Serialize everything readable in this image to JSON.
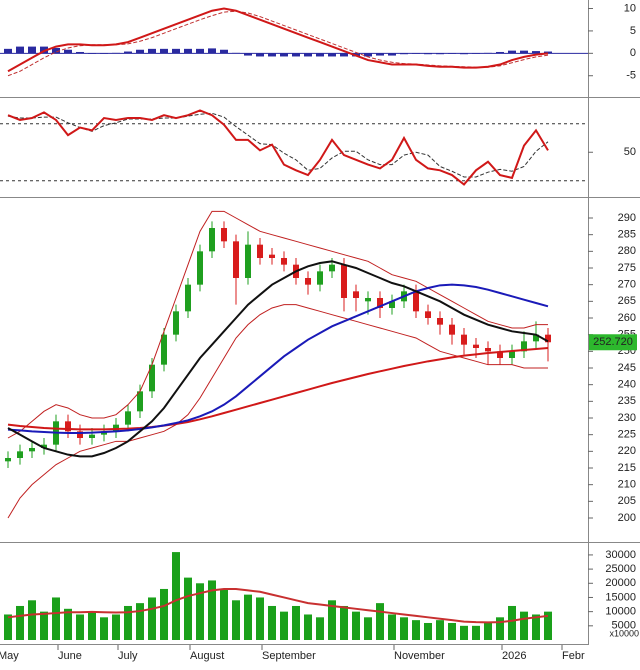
{
  "chart_data": [
    {
      "type": "line",
      "ylim": [
        -9.3,
        11.9
      ],
      "yticks": [
        10,
        5,
        0,
        -5
      ],
      "series": [
        {
          "style": "bars",
          "color": "#2a2aa0",
          "values": [
            1,
            1.5,
            1.5,
            1.5,
            1.2,
            0.8,
            0.3,
            -0.1,
            -0.1,
            0.1,
            0.4,
            0.8,
            1,
            1,
            1,
            1,
            1,
            1.1,
            0.8,
            0.1,
            -0.5,
            -0.7,
            -0.7,
            -0.7,
            -0.7,
            -0.7,
            -0.7,
            -0.7,
            -0.7,
            -0.7,
            -0.7,
            -0.5,
            -0.5,
            -0.2,
            -0.1,
            -0.2,
            -0.2,
            -0.1,
            -0.2,
            -0.1,
            0.1,
            0.3,
            0.6,
            0.6,
            0.5,
            0.4,
            null,
            null,
            null
          ]
        },
        {
          "style": "dashed",
          "color": "#c03030",
          "values": [
            -5,
            -4,
            -2.5,
            -1,
            0.3,
            1.2,
            1.7,
            1.9,
            1.9,
            1.9,
            2.1,
            2.7,
            3.5,
            4.5,
            5.5,
            6.5,
            7.5,
            8.4,
            9.2,
            9.4,
            9,
            8.2,
            7.2,
            6.2,
            5.2,
            4.2,
            3.2,
            2.2,
            1.2,
            0.2,
            -0.8,
            -1.5,
            -2,
            -2.3,
            -2.4,
            -2.6,
            -2.8,
            -2.9,
            -3,
            -3.1,
            -3.1,
            -2.8,
            -2.1,
            -1.4,
            -0.8,
            -0.4,
            null,
            null,
            null
          ]
        },
        {
          "style": "solid",
          "color": "#d01818",
          "values": [
            -4,
            -2.5,
            -1,
            0.5,
            1.5,
            2,
            2,
            1.8,
            1.8,
            2,
            2.5,
            3.5,
            4.5,
            5.5,
            6.5,
            7.5,
            8.5,
            9.5,
            10,
            9.5,
            8.5,
            7.5,
            6.5,
            5.5,
            4.5,
            3.5,
            2.5,
            1.5,
            0.5,
            -0.5,
            -1.5,
            -2,
            -2.5,
            -2.5,
            -2.5,
            -2.8,
            -3,
            -3,
            -3.2,
            -3.2,
            -3,
            -2.5,
            -1.5,
            -0.8,
            -0.3,
            0,
            null,
            null,
            null
          ]
        }
      ]
    },
    {
      "type": "line",
      "ylim": [
        5,
        105
      ],
      "yticks": [
        50
      ],
      "levels": [
        80,
        20
      ],
      "series": [
        {
          "style": "dashed",
          "color": "#333333",
          "values": [
            88,
            86,
            86,
            87,
            87,
            81,
            76,
            72,
            78,
            81,
            85,
            85,
            85,
            86,
            86,
            88,
            90,
            91,
            87,
            77,
            68,
            59,
            58,
            49,
            42,
            31,
            33,
            44,
            51,
            51,
            42,
            37,
            37,
            47,
            50,
            47,
            35,
            30,
            24,
            24,
            29,
            32,
            30,
            35,
            51,
            61,
            null,
            null,
            null
          ]
        },
        {
          "style": "solid",
          "color": "#d01818",
          "values": [
            89,
            84,
            86,
            92,
            84,
            68,
            76,
            73,
            86,
            84,
            86,
            86,
            84,
            89,
            86,
            89,
            94,
            89,
            79,
            63,
            63,
            52,
            58,
            37,
            31,
            26,
            42,
            63,
            47,
            42,
            37,
            33,
            42,
            65,
            42,
            33,
            31,
            26,
            16,
            31,
            40,
            26,
            23,
            57,
            73,
            52,
            null,
            null,
            null
          ]
        }
      ]
    },
    {
      "type": "candlestick",
      "ylim": [
        193.4,
        295.4
      ],
      "yticks": [
        200,
        205,
        210,
        215,
        220,
        225,
        230,
        235,
        240,
        245,
        250,
        255,
        260,
        265,
        270,
        275,
        280,
        285,
        290
      ],
      "up_color": "#1f9f1f",
      "down_color": "#d81c1c",
      "open": [
        217,
        218,
        220,
        221,
        222,
        229,
        226,
        224,
        225,
        226,
        228,
        232,
        238,
        246,
        255,
        262,
        270,
        280,
        287,
        283,
        272,
        282,
        279,
        278,
        276,
        272,
        270,
        274,
        276,
        268,
        265,
        266,
        263,
        265,
        268,
        262,
        260,
        258,
        255,
        252,
        251,
        250,
        248,
        250,
        253,
        255,
        null,
        null,
        null
      ],
      "high": [
        220,
        222,
        223,
        224,
        231,
        231,
        228,
        227,
        228,
        230,
        234,
        240,
        248,
        257,
        264,
        272,
        282,
        289,
        289,
        285,
        286,
        284,
        281,
        280,
        278,
        274,
        276,
        278,
        278,
        270,
        268,
        268,
        267,
        270,
        270,
        264,
        262,
        260,
        257,
        254,
        253,
        252,
        252,
        256,
        259,
        257,
        null,
        null,
        null
      ],
      "low": [
        215,
        216,
        218,
        219,
        220,
        224,
        222,
        222,
        223,
        224,
        226,
        230,
        236,
        244,
        253,
        260,
        268,
        278,
        281,
        264,
        270,
        276,
        276,
        274,
        270,
        267,
        268,
        272,
        262,
        262,
        261,
        260,
        261,
        263,
        260,
        258,
        255,
        252,
        249,
        248,
        246,
        246,
        246,
        248,
        251,
        247,
        null,
        null,
        null
      ],
      "close": [
        218,
        220,
        221,
        222,
        229,
        226,
        224,
        225,
        226,
        228,
        232,
        238,
        246,
        255,
        262,
        270,
        280,
        287,
        283,
        272,
        282,
        278,
        278,
        276,
        272,
        270,
        274,
        276,
        266,
        266,
        266,
        263,
        265,
        268,
        262,
        260,
        258,
        255,
        252,
        251,
        250,
        248,
        250,
        253,
        255,
        252.72,
        null,
        null,
        null
      ],
      "last_label": "252.720",
      "last_label_color": "#2db82d",
      "series": [
        {
          "style": "thin",
          "color": "#c02020",
          "values": [
            224,
            226,
            229,
            232,
            234,
            233,
            231,
            230,
            230,
            231,
            234,
            238,
            246,
            256,
            266,
            276,
            286,
            292,
            292,
            290,
            288,
            286,
            285,
            284,
            283,
            282,
            281,
            280,
            279,
            278,
            277,
            275,
            273,
            272,
            271,
            269,
            267,
            265,
            263,
            261,
            259,
            258,
            257,
            257,
            258,
            258,
            null,
            null,
            null
          ]
        },
        {
          "style": "thin",
          "color": "#c02020",
          "values": [
            200,
            206,
            210,
            213,
            216,
            218,
            220,
            221,
            222,
            223,
            223,
            224,
            225,
            226,
            228,
            231,
            236,
            242,
            248,
            254,
            258,
            261,
            263,
            264,
            264,
            263,
            262,
            261,
            260,
            259,
            258,
            257,
            256,
            255,
            254,
            252,
            250,
            249,
            248,
            247,
            246,
            246,
            246,
            245,
            245,
            245,
            null,
            null,
            null
          ]
        },
        {
          "style": "solid",
          "color": "#d01818",
          "values": [
            228,
            227.6,
            227.3,
            227,
            226.8,
            226.7,
            226.6,
            226.6,
            226.6,
            226.7,
            226.8,
            227,
            227.3,
            227.7,
            228.2,
            228.8,
            229.6,
            230.5,
            231.5,
            232.5,
            233.5,
            234.5,
            235.5,
            236.5,
            237.5,
            238.5,
            239.5,
            240.5,
            241.4,
            242.3,
            243.2,
            244,
            244.8,
            245.6,
            246.3,
            247,
            247.6,
            248.2,
            248.7,
            249.1,
            249.5,
            249.8,
            250.1,
            250.4,
            250.7,
            251,
            null,
            null,
            null
          ]
        },
        {
          "style": "solid",
          "color": "#1a1ab8",
          "values": [
            226.5,
            226.3,
            226,
            225.8,
            225.6,
            225.5,
            225.5,
            225.6,
            225.8,
            226,
            226.3,
            226.7,
            227.2,
            227.8,
            228.5,
            229.3,
            230.5,
            232,
            234,
            236.5,
            239.5,
            242.5,
            245.5,
            248.5,
            251,
            253.5,
            255.5,
            257.5,
            259,
            260.5,
            262,
            263.5,
            265,
            266.5,
            268,
            269,
            269.8,
            270,
            269.8,
            269.3,
            268.5,
            267.5,
            266.5,
            265.5,
            264.5,
            263.5,
            null,
            null,
            null
          ]
        },
        {
          "style": "solid",
          "color": "#111111",
          "values": [
            227,
            225,
            223,
            221,
            220,
            219,
            218.5,
            218.5,
            219.5,
            221,
            223,
            226,
            229,
            233,
            238,
            243,
            248,
            252,
            256,
            260,
            264,
            267,
            270,
            272,
            274,
            275.5,
            276.5,
            277,
            276,
            275,
            273.5,
            272,
            270.5,
            269.5,
            268,
            266.5,
            265,
            263,
            261,
            259.5,
            258,
            257,
            256,
            255.5,
            255,
            253,
            null,
            null,
            null
          ]
        }
      ]
    },
    {
      "type": "bar",
      "ylim": [
        0,
        33500
      ],
      "yticks": [
        5000,
        10000,
        15000,
        20000,
        25000,
        30000
      ],
      "unit_label": "x10000",
      "categories": [
        "May",
        null,
        null,
        null,
        null,
        "June",
        null,
        null,
        null,
        null,
        "July",
        null,
        null,
        null,
        null,
        null,
        "August",
        null,
        null,
        null,
        null,
        null,
        "September",
        null,
        null,
        null,
        null,
        null,
        null,
        null,
        null,
        null,
        null,
        "November",
        null,
        null,
        null,
        null,
        null,
        null,
        null,
        null,
        "2026",
        null,
        null,
        null,
        null,
        "Febr",
        null
      ],
      "color": "#1aa01a",
      "values": [
        9000,
        12000,
        14000,
        10000,
        15000,
        11000,
        9000,
        10000,
        8000,
        9000,
        12000,
        13000,
        15000,
        18000,
        31000,
        22000,
        20000,
        21000,
        18000,
        14000,
        16000,
        15000,
        12000,
        10000,
        12000,
        9000,
        8000,
        14000,
        12000,
        10000,
        8000,
        13000,
        9000,
        8000,
        7000,
        6000,
        7000,
        6000,
        5000,
        5000,
        6000,
        8000,
        12000,
        10000,
        9000,
        10000,
        null,
        null,
        null
      ],
      "series": [
        {
          "style": "solid",
          "color": "#c83030",
          "values": [
            8000,
            8500,
            9000,
            9200,
            9500,
            9800,
            9800,
            9900,
            9800,
            9700,
            9800,
            10200,
            11000,
            12000,
            14000,
            15500,
            16500,
            17500,
            18000,
            18000,
            17500,
            17000,
            16000,
            15000,
            14000,
            13000,
            12500,
            12000,
            11500,
            11000,
            10500,
            10000,
            9500,
            9000,
            8500,
            8000,
            7500,
            7000,
            6500,
            6300,
            6200,
            6300,
            6800,
            7500,
            8000,
            8500,
            null,
            null,
            null
          ]
        }
      ]
    }
  ]
}
